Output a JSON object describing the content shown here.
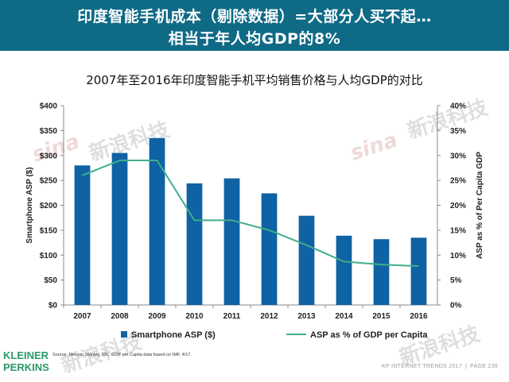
{
  "header": {
    "line1": "印度智能手机成本（剔除数据）=大部分人买不起…",
    "line2": "相当于年人均GDP的8%"
  },
  "watermarks": {
    "brand": "新浪科技",
    "sina": "sina"
  },
  "chart_data": {
    "type": "bar+line",
    "title": "2007年至2016年印度智能手机平均销售价格与人均GDP的对比",
    "categories": [
      "2007",
      "2008",
      "2009",
      "2010",
      "2011",
      "2012",
      "2013",
      "2014",
      "2015",
      "2016"
    ],
    "series": [
      {
        "name": "Smartphone ASP ($)",
        "type": "bar",
        "axis": "left",
        "color": "#0f62a3",
        "values": [
          280,
          305,
          335,
          244,
          254,
          224,
          179,
          139,
          132,
          135
        ]
      },
      {
        "name": "ASP as % of GDP per Capita",
        "type": "line",
        "axis": "right",
        "color": "#3fae8c",
        "values": [
          26,
          29,
          29,
          17,
          17,
          15,
          12,
          8.7,
          8.1,
          7.8
        ]
      }
    ],
    "ylabel_left": "Smartphone ASP ($)",
    "ylabel_right": "ASP as % of Per Capita GDP",
    "ylim_left": [
      0,
      400
    ],
    "ylim_right": [
      0,
      40
    ],
    "yticks_left": [
      "$0",
      "$50",
      "$100",
      "$150",
      "$200",
      "$250",
      "$300",
      "$350",
      "$400"
    ],
    "yticks_right": [
      "0%",
      "5%",
      "10%",
      "15%",
      "20%",
      "25%",
      "30%",
      "35%",
      "40%"
    ],
    "grid": false,
    "legend": "bottom"
  },
  "source": "Source: Morgan Stanley, IDC. GDP per Capita data based on IMF, 4/17.",
  "logo": {
    "line1": "KLEINER",
    "line2": "PERKINS"
  },
  "footer": {
    "left": "KP INTERNET TRENDS 2017",
    "right": "PAGE 239"
  }
}
